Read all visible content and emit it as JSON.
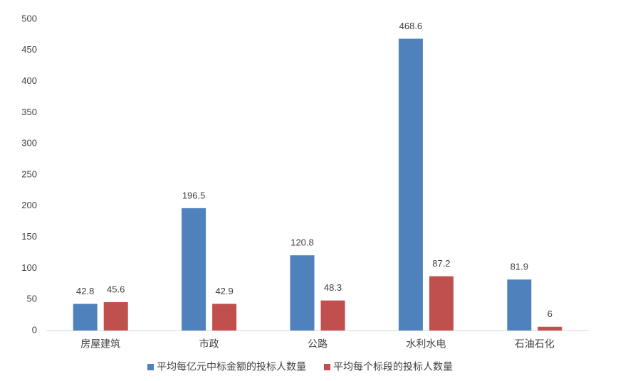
{
  "chart_data": {
    "type": "bar",
    "categories": [
      "房屋建筑",
      "市政",
      "公路",
      "水利水电",
      "石油石化"
    ],
    "series": [
      {
        "name": "平均每亿元中标金额的投标人数量",
        "color": "#4f81bd",
        "values": [
          42.8,
          196.5,
          120.8,
          468.6,
          81.9
        ]
      },
      {
        "name": "平均每个标段的投标人数量",
        "color": "#c0504d",
        "values": [
          45.6,
          42.9,
          48.3,
          87.2,
          6
        ]
      }
    ],
    "ylim": [
      0,
      500
    ],
    "yticks": [
      0,
      50,
      100,
      150,
      200,
      250,
      300,
      350,
      400,
      450,
      500
    ],
    "grid": false,
    "legend": "bottom"
  }
}
